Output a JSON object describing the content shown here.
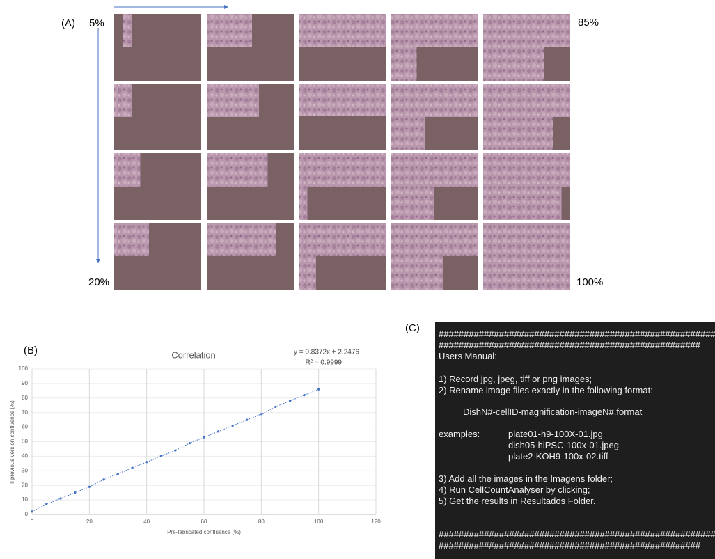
{
  "panel_a": {
    "label": "(A)",
    "start_label": "5%",
    "row_end_label": "85%",
    "col_end_label": "20%",
    "end_label": "100%"
  },
  "chart_data": {
    "type": "scatter",
    "panel_label": "(B)",
    "title": "Correlation",
    "equation": "y = 0.8372x + 2.2476",
    "r_squared": "R² = 0.9999",
    "x_label": "Pre-fabricated confluence (%)",
    "y_label": "ll previous version confluence (%)",
    "x": [
      0,
      5,
      10,
      15,
      20,
      25,
      30,
      35,
      40,
      45,
      50,
      55,
      60,
      65,
      70,
      75,
      80,
      85,
      90,
      95,
      100
    ],
    "series": [
      {
        "color": "#4472c4",
        "values": [
          2,
          7,
          11,
          15,
          19,
          24,
          28,
          32,
          36,
          40,
          44,
          49,
          53,
          57,
          61,
          65,
          69,
          74,
          78,
          82,
          86
        ]
      }
    ],
    "xlim": [
      0,
      120
    ],
    "xticks": [
      0,
      20,
      40,
      60,
      80,
      100,
      120
    ],
    "ylim": [
      0,
      100
    ],
    "yticks": [
      0,
      10,
      20,
      30,
      40,
      50,
      60,
      70,
      80,
      90,
      100
    ],
    "grid": true,
    "trendline": true
  },
  "panel_c": {
    "label": "(C)",
    "lines": [
      "############################################################",
      "####################################################",
      "Users Manual:",
      "1) Record jpg, jpeg, tiff or png images;",
      "2) Rename image files exactly in the following format:",
      "DishN#-cellID-magnification-imageN#.format",
      "examples:",
      "plate01-h9-100X-01.jpg",
      "dish05-hiPSC-100x-01.jpeg",
      "plate2-KOH9-100x-02.tiff",
      "3) Add all the images in the Imagens folder;",
      "4) Run CellCountAnalyser by clicking;",
      "5) Get the results in Resultados Folder.",
      "############################################################",
      "####################################################"
    ]
  }
}
